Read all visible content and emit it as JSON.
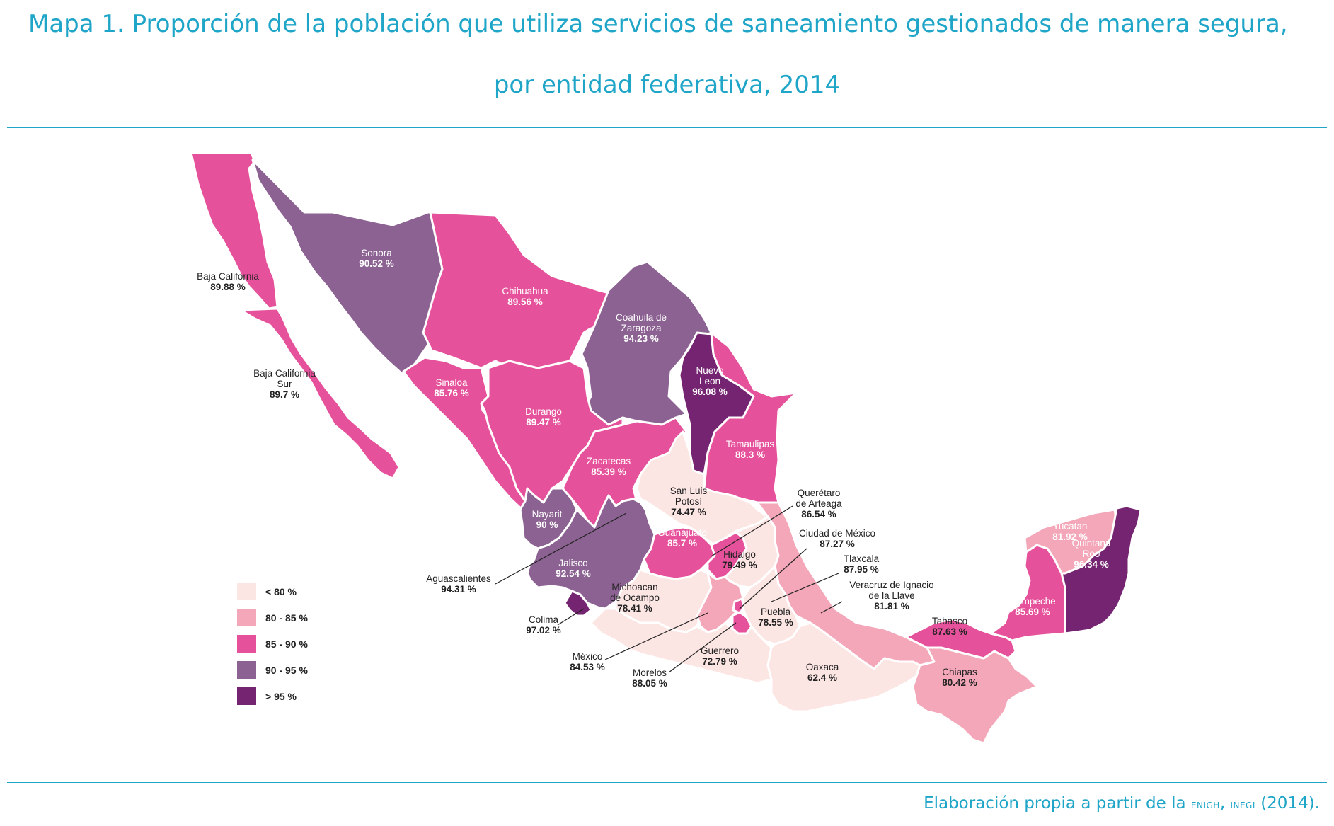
{
  "title": {
    "line1": "Mapa 1.  Proporción de la población que utiliza servicios de saneamiento gestionados de manera segura,",
    "line2": "por entidad federativa, 2014"
  },
  "footer": {
    "prefix": "Elaboración propia a partir de la ",
    "source1": "enigh",
    "sep": ", ",
    "source2": "inegi",
    "suffix": " (2014)."
  },
  "legend": [
    {
      "label": "< 80 %",
      "color": "#fce6e4"
    },
    {
      "label": "80 - 85 %",
      "color": "#f3a7b8"
    },
    {
      "label": "85 - 90 %",
      "color": "#e5519a"
    },
    {
      "label": "90 - 95 %",
      "color": "#8c6292"
    },
    {
      "label": "> 95 %",
      "color": "#742470"
    }
  ],
  "states": [
    {
      "id": "baja-california",
      "name": [
        "Baja California"
      ],
      "value": "89.88 %",
      "pct": 89.88
    },
    {
      "id": "baja-california-sur",
      "name": [
        "Baja California",
        "Sur"
      ],
      "value": "89.7 %",
      "pct": 89.7
    },
    {
      "id": "sonora",
      "name": [
        "Sonora"
      ],
      "value": "90.52 %",
      "pct": 90.52
    },
    {
      "id": "chihuahua",
      "name": [
        "Chihuahua"
      ],
      "value": "89.56 %",
      "pct": 89.56
    },
    {
      "id": "coahuila",
      "name": [
        "Coahuila de",
        "Zaragoza"
      ],
      "value": "94.23 %",
      "pct": 94.23
    },
    {
      "id": "nuevo-leon",
      "name": [
        "Nuevo",
        "Leon"
      ],
      "value": "96.08 %",
      "pct": 96.08
    },
    {
      "id": "tamaulipas",
      "name": [
        "Tamaulipas"
      ],
      "value": "88.3 %",
      "pct": 88.3
    },
    {
      "id": "sinaloa",
      "name": [
        "Sinaloa"
      ],
      "value": "85.76 %",
      "pct": 85.76
    },
    {
      "id": "durango",
      "name": [
        "Durango"
      ],
      "value": "89.47 %",
      "pct": 89.47
    },
    {
      "id": "zacatecas",
      "name": [
        "Zacatecas"
      ],
      "value": "85.39 %",
      "pct": 85.39
    },
    {
      "id": "san-luis-potosi",
      "name": [
        "San Luis",
        "Potosí"
      ],
      "value": "74.47 %",
      "pct": 74.47
    },
    {
      "id": "nayarit",
      "name": [
        "Nayarit"
      ],
      "value": "90 %",
      "pct": 90
    },
    {
      "id": "aguascalientes",
      "name": [
        "Aguascalientes"
      ],
      "value": "94.31 %",
      "pct": 94.31
    },
    {
      "id": "jalisco",
      "name": [
        "Jalisco"
      ],
      "value": "92.54 %",
      "pct": 92.54
    },
    {
      "id": "guanajuato",
      "name": [
        "Guanajuato"
      ],
      "value": "85.7 %",
      "pct": 85.7
    },
    {
      "id": "queretaro",
      "name": [
        "Querétaro",
        "de Arteaga"
      ],
      "value": "86.54 %",
      "pct": 86.54
    },
    {
      "id": "hidalgo",
      "name": [
        "Hidalgo"
      ],
      "value": "79.49 %",
      "pct": 79.49
    },
    {
      "id": "ciudad-de-mexico",
      "name": [
        "Ciudad de México"
      ],
      "value": "87.27 %",
      "pct": 87.27
    },
    {
      "id": "tlaxcala",
      "name": [
        "Tlaxcala"
      ],
      "value": "87.95 %",
      "pct": 87.95
    },
    {
      "id": "veracruz",
      "name": [
        "Veracruz de Ignacio",
        "de la Llave"
      ],
      "value": "81.81 %",
      "pct": 81.81
    },
    {
      "id": "colima",
      "name": [
        "Colima"
      ],
      "value": "97.02 %",
      "pct": 97.02
    },
    {
      "id": "michoacan",
      "name": [
        "Michoacan",
        "de Ocampo"
      ],
      "value": "78.41 %",
      "pct": 78.41
    },
    {
      "id": "mexico",
      "name": [
        "México"
      ],
      "value": "84.53 %",
      "pct": 84.53
    },
    {
      "id": "morelos",
      "name": [
        "Morelos"
      ],
      "value": "88.05 %",
      "pct": 88.05
    },
    {
      "id": "puebla",
      "name": [
        "Puebla"
      ],
      "value": "78.55 %",
      "pct": 78.55
    },
    {
      "id": "guerrero",
      "name": [
        "Guerrero"
      ],
      "value": "72.79 %",
      "pct": 72.79
    },
    {
      "id": "oaxaca",
      "name": [
        "Oaxaca"
      ],
      "value": "62.4 %",
      "pct": 62.4
    },
    {
      "id": "chiapas",
      "name": [
        "Chiapas"
      ],
      "value": "80.42 %",
      "pct": 80.42
    },
    {
      "id": "tabasco",
      "name": [
        "Tabasco"
      ],
      "value": "87.63 %",
      "pct": 87.63
    },
    {
      "id": "campeche",
      "name": [
        "Campeche"
      ],
      "value": "85.69 %",
      "pct": 85.69
    },
    {
      "id": "yucatan",
      "name": [
        "Yucatan"
      ],
      "value": "81.92 %",
      "pct": 81.92
    },
    {
      "id": "quintana-roo",
      "name": [
        "Quintana",
        "Roo"
      ],
      "value": "96.34 %",
      "pct": 96.34
    }
  ]
}
